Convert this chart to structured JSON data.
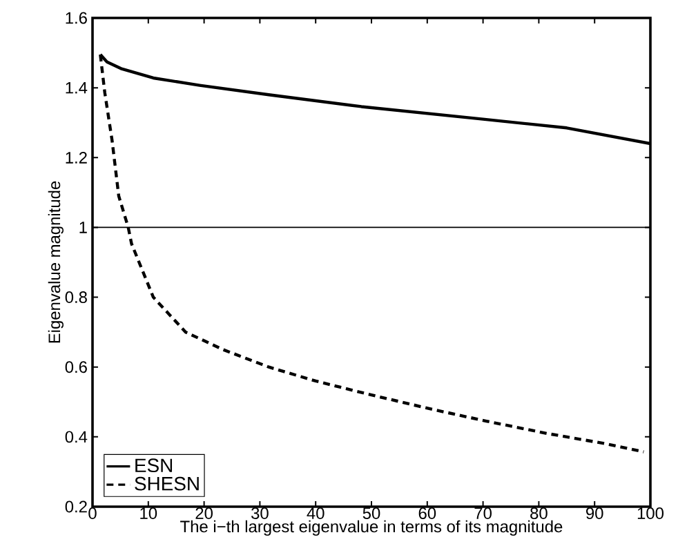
{
  "chart_data": {
    "type": "line",
    "xlabel": "The i−th largest eigenvalue in terms of its magnitude",
    "ylabel": "Eigenvalue magnitude",
    "xlim": [
      0,
      100
    ],
    "ylim": [
      0.2,
      1.6
    ],
    "xticks": [
      0,
      10,
      20,
      30,
      40,
      50,
      60,
      70,
      80,
      90,
      100
    ],
    "yticks": [
      0.2,
      0.4,
      0.6,
      0.8,
      1,
      1.2,
      1.4,
      1.6
    ],
    "legend": "bottom left",
    "grid": false,
    "marker": "none",
    "ref_lines": [
      {
        "axis": "y",
        "value": 1,
        "color": "#000000"
      }
    ],
    "series": [
      {
        "name": "ESN",
        "color": "#000000",
        "line_style": "solid",
        "x": [
          1.4,
          2.6,
          5.1,
          10.9,
          19.2,
          31.6,
          48.2,
          70,
          85,
          100
        ],
        "values": [
          1.495,
          1.474,
          1.455,
          1.428,
          1.407,
          1.38,
          1.346,
          1.31,
          1.285,
          1.24
        ]
      },
      {
        "name": "SHESN",
        "color": "#000000",
        "line_style": "dashed",
        "x": [
          1.4,
          2.2,
          3.5,
          4.7,
          6.4,
          7,
          10.9,
          16.7,
          23.4,
          31.6,
          40,
          50,
          60.6,
          70.6,
          81.4,
          92.1,
          98.8
        ],
        "values": [
          1.495,
          1.386,
          1.25,
          1.09,
          1.0,
          0.953,
          0.8,
          0.7,
          0.65,
          0.6,
          0.56,
          0.52,
          0.48,
          0.445,
          0.41,
          0.38,
          0.357
        ]
      }
    ]
  }
}
